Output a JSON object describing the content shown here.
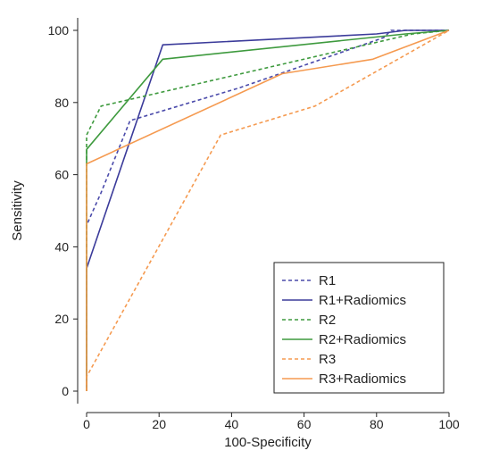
{
  "chart_data": {
    "type": "line",
    "title": "",
    "xlabel": "100-Specificity",
    "ylabel": "Sensitivity",
    "xlim": [
      0,
      100
    ],
    "ylim": [
      0,
      100
    ],
    "x_ticks": [
      "0",
      "20",
      "40",
      "60",
      "80",
      "100"
    ],
    "y_ticks": [
      "0",
      "20",
      "40",
      "60",
      "80",
      "100"
    ],
    "grid": false,
    "legend_position": "bottom-right",
    "series": [
      {
        "name": "R1",
        "color": "#4a4aaa",
        "dashed": true,
        "points": [
          [
            0,
            0
          ],
          [
            0,
            46
          ],
          [
            4,
            55
          ],
          [
            12,
            75
          ],
          [
            42,
            84
          ],
          [
            82,
            98
          ],
          [
            84,
            100
          ],
          [
            100,
            100
          ]
        ]
      },
      {
        "name": "R1+Radiomics",
        "color": "#3b3b9a",
        "dashed": false,
        "points": [
          [
            0,
            0
          ],
          [
            0,
            34
          ],
          [
            21,
            96
          ],
          [
            80,
            99
          ],
          [
            88,
            100
          ],
          [
            100,
            100
          ]
        ]
      },
      {
        "name": "R2",
        "color": "#3e9a3e",
        "dashed": true,
        "points": [
          [
            0,
            0
          ],
          [
            0,
            71
          ],
          [
            4,
            79
          ],
          [
            17,
            82
          ],
          [
            90,
            99
          ],
          [
            100,
            100
          ]
        ]
      },
      {
        "name": "R2+Radiomics",
        "color": "#3e9a3e",
        "dashed": false,
        "points": [
          [
            0,
            0
          ],
          [
            0,
            67
          ],
          [
            21,
            92
          ],
          [
            88,
            99
          ],
          [
            100,
            100
          ]
        ]
      },
      {
        "name": "R3",
        "color": "#f59a50",
        "dashed": true,
        "points": [
          [
            0,
            0
          ],
          [
            0,
            4
          ],
          [
            37,
            71
          ],
          [
            63,
            79
          ],
          [
            100,
            100
          ]
        ]
      },
      {
        "name": "R3+Radiomics",
        "color": "#f59a50",
        "dashed": false,
        "points": [
          [
            0,
            0
          ],
          [
            0,
            63
          ],
          [
            54,
            88
          ],
          [
            79,
            92
          ],
          [
            100,
            100
          ]
        ]
      }
    ]
  }
}
